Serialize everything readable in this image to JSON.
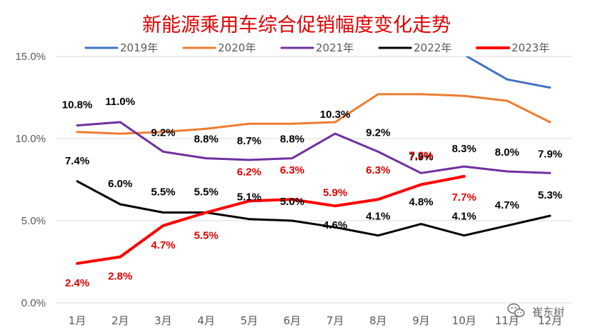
{
  "chart_data": {
    "type": "line",
    "title": "新能源乘用车综合促销幅度变化走势",
    "categories": [
      "1月",
      "2月",
      "3月",
      "4月",
      "5月",
      "6月",
      "7月",
      "8月",
      "9月",
      "10月",
      "11月",
      "12月"
    ],
    "ylim": [
      0,
      15
    ],
    "yticks": [
      "0.0%",
      "5.0%",
      "10.0%",
      "15.0%"
    ],
    "ytick_values": [
      0,
      5,
      10,
      15
    ],
    "grid": true,
    "legend_position": "top",
    "series": [
      {
        "name": "2019年",
        "color": "#4472c4",
        "values": [
          null,
          null,
          null,
          null,
          null,
          null,
          null,
          null,
          null,
          15.1,
          13.6,
          13.1
        ],
        "labels": false
      },
      {
        "name": "2020年",
        "color": "#ed7d31",
        "values": [
          10.4,
          10.3,
          10.4,
          10.6,
          10.9,
          10.9,
          11.0,
          12.7,
          12.7,
          12.6,
          12.3,
          11.0
        ],
        "labels": false
      },
      {
        "name": "2021年",
        "color": "#7030a0",
        "values": [
          10.8,
          11.0,
          9.2,
          8.8,
          8.7,
          8.8,
          10.3,
          9.2,
          7.9,
          8.3,
          8.0,
          7.9
        ],
        "labels": true,
        "label_color": "#000000"
      },
      {
        "name": "2022年",
        "color": "#000000",
        "values": [
          7.4,
          6.0,
          5.5,
          5.5,
          5.1,
          5.0,
          4.6,
          4.1,
          4.8,
          4.1,
          4.7,
          5.3
        ],
        "labels": true,
        "label_color": "#000000"
      },
      {
        "name": "2023年",
        "color": "#ff0000",
        "values": [
          2.4,
          2.8,
          4.7,
          5.5,
          6.2,
          6.3,
          5.9,
          6.3,
          7.2,
          7.7,
          null,
          null
        ],
        "labels": true,
        "label_color": "#e00000"
      }
    ]
  },
  "watermark": {
    "text": "崔东树",
    "icon": "wechat-icon"
  }
}
